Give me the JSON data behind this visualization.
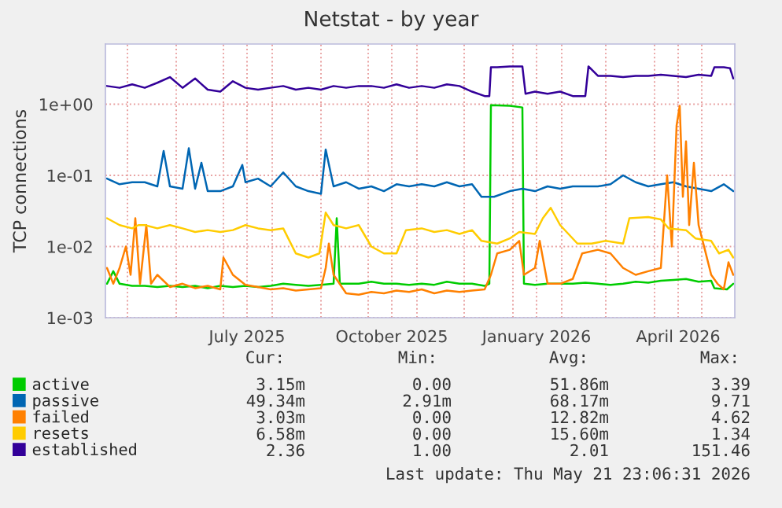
{
  "chart_data": {
    "type": "line",
    "title": "Netstat - by year",
    "ylabel": "TCP connections",
    "log": true,
    "grid": true,
    "legend": "bottom",
    "marker": "none",
    "line_style": "solid",
    "ylim": [
      0.001,
      7
    ],
    "yticks": [
      {
        "value": 0.001,
        "label": "1e-03"
      },
      {
        "value": 0.01,
        "label": "1e-02"
      },
      {
        "value": 0.1,
        "label": "1e-01"
      },
      {
        "value": 1,
        "label": "1e+00"
      }
    ],
    "xlim": [
      "2025-04-17",
      "2026-05-22"
    ],
    "xticks": [
      {
        "value": "2025-05-01",
        "label": null
      },
      {
        "value": "2025-06-01",
        "label": null
      },
      {
        "value": "2025-07-01",
        "label": null
      },
      {
        "value": "2025-07-16",
        "label": "July 2025"
      },
      {
        "value": "2025-08-01",
        "label": null
      },
      {
        "value": "2025-09-01",
        "label": null
      },
      {
        "value": "2025-10-01",
        "label": null
      },
      {
        "value": "2025-10-16",
        "label": "October 2025"
      },
      {
        "value": "2025-11-01",
        "label": null
      },
      {
        "value": "2025-12-01",
        "label": null
      },
      {
        "value": "2026-01-01",
        "label": null
      },
      {
        "value": "2026-01-16",
        "label": "January 2026"
      },
      {
        "value": "2026-02-01",
        "label": null
      },
      {
        "value": "2026-03-01",
        "label": null
      },
      {
        "value": "2026-04-01",
        "label": null
      },
      {
        "value": "2026-04-16",
        "label": "April 2026"
      },
      {
        "value": "2026-05-01",
        "label": null
      }
    ],
    "series": [
      {
        "name": "active",
        "color": "#00cc00",
        "x": [
          "2025-04-18",
          "2025-04-22",
          "2025-04-26",
          "2025-05-04",
          "2025-05-12",
          "2025-05-20",
          "2025-05-28",
          "2025-06-05",
          "2025-06-13",
          "2025-06-21",
          "2025-06-29",
          "2025-07-07",
          "2025-07-15",
          "2025-07-23",
          "2025-07-31",
          "2025-08-08",
          "2025-08-16",
          "2025-08-24",
          "2025-09-01",
          "2025-09-09",
          "2025-09-11",
          "2025-09-13",
          "2025-09-25",
          "2025-10-03",
          "2025-10-11",
          "2025-10-19",
          "2025-10-27",
          "2025-11-04",
          "2025-11-12",
          "2025-11-20",
          "2025-11-28",
          "2025-12-06",
          "2025-12-14",
          "2025-12-17",
          "2025-12-18",
          "2025-12-30",
          "2026-01-07",
          "2026-01-08",
          "2026-01-15",
          "2026-01-23",
          "2026-01-31",
          "2026-02-08",
          "2026-02-16",
          "2026-02-24",
          "2026-03-04",
          "2026-03-12",
          "2026-03-20",
          "2026-03-28",
          "2026-04-05",
          "2026-04-13",
          "2026-04-21",
          "2026-04-29",
          "2026-05-07",
          "2026-05-09",
          "2026-05-17",
          "2026-05-21"
        ],
        "values": [
          0.003,
          0.0045,
          0.003,
          0.0028,
          0.0028,
          0.0027,
          0.0028,
          0.0027,
          0.0028,
          0.0026,
          0.0028,
          0.0027,
          0.0028,
          0.0027,
          0.0028,
          0.003,
          0.0029,
          0.0028,
          0.0029,
          0.003,
          0.025,
          0.003,
          0.003,
          0.0032,
          0.003,
          0.003,
          0.0029,
          0.003,
          0.0029,
          0.0032,
          0.003,
          0.003,
          0.0028,
          0.003,
          0.97,
          0.95,
          0.9,
          0.003,
          0.0029,
          0.003,
          0.003,
          0.003,
          0.0031,
          0.003,
          0.0029,
          0.003,
          0.0032,
          0.0031,
          0.0033,
          0.0034,
          0.0035,
          0.0032,
          0.0033,
          0.0026,
          0.0025,
          0.003
        ]
      },
      {
        "name": "passive",
        "color": "#0066b3",
        "x": [
          "2025-04-18",
          "2025-04-26",
          "2025-05-04",
          "2025-05-12",
          "2025-05-20",
          "2025-05-24",
          "2025-05-28",
          "2025-06-05",
          "2025-06-09",
          "2025-06-13",
          "2025-06-17",
          "2025-06-21",
          "2025-06-29",
          "2025-07-07",
          "2025-07-13",
          "2025-07-15",
          "2025-07-23",
          "2025-07-31",
          "2025-08-08",
          "2025-08-16",
          "2025-08-24",
          "2025-09-01",
          "2025-09-04",
          "2025-09-09",
          "2025-09-17",
          "2025-09-25",
          "2025-10-03",
          "2025-10-11",
          "2025-10-19",
          "2025-10-27",
          "2025-11-04",
          "2025-11-12",
          "2025-11-20",
          "2025-11-28",
          "2025-12-06",
          "2025-12-12",
          "2025-12-20",
          "2025-12-30",
          "2026-01-07",
          "2026-01-15",
          "2026-01-23",
          "2026-01-31",
          "2026-02-08",
          "2026-02-16",
          "2026-02-24",
          "2026-03-04",
          "2026-03-12",
          "2026-03-20",
          "2026-03-28",
          "2026-04-05",
          "2026-04-13",
          "2026-04-21",
          "2026-04-29",
          "2026-05-07",
          "2026-05-15",
          "2026-05-21"
        ],
        "values": [
          0.09,
          0.075,
          0.08,
          0.08,
          0.07,
          0.22,
          0.07,
          0.065,
          0.24,
          0.065,
          0.15,
          0.06,
          0.06,
          0.07,
          0.14,
          0.08,
          0.09,
          0.07,
          0.11,
          0.07,
          0.06,
          0.055,
          0.23,
          0.07,
          0.08,
          0.065,
          0.07,
          0.06,
          0.075,
          0.07,
          0.075,
          0.07,
          0.08,
          0.07,
          0.075,
          0.05,
          0.05,
          0.06,
          0.065,
          0.06,
          0.07,
          0.065,
          0.07,
          0.07,
          0.07,
          0.075,
          0.1,
          0.08,
          0.07,
          0.075,
          0.08,
          0.07,
          0.065,
          0.06,
          0.075,
          0.06
        ]
      },
      {
        "name": "failed",
        "color": "#ff8000",
        "x": [
          "2025-04-18",
          "2025-04-22",
          "2025-04-26",
          "2025-04-30",
          "2025-05-03",
          "2025-05-06",
          "2025-05-09",
          "2025-05-13",
          "2025-05-16",
          "2025-05-20",
          "2025-05-28",
          "2025-06-05",
          "2025-06-13",
          "2025-06-21",
          "2025-06-29",
          "2025-07-01",
          "2025-07-07",
          "2025-07-15",
          "2025-07-23",
          "2025-07-31",
          "2025-08-08",
          "2025-08-16",
          "2025-08-24",
          "2025-09-01",
          "2025-09-04",
          "2025-09-06",
          "2025-09-09",
          "2025-09-17",
          "2025-09-25",
          "2025-10-03",
          "2025-10-11",
          "2025-10-19",
          "2025-10-27",
          "2025-11-04",
          "2025-11-12",
          "2025-11-20",
          "2025-11-28",
          "2025-12-06",
          "2025-12-14",
          "2025-12-18",
          "2025-12-22",
          "2025-12-30",
          "2026-01-05",
          "2026-01-08",
          "2026-01-15",
          "2026-01-18",
          "2026-01-23",
          "2026-01-31",
          "2026-02-08",
          "2026-02-14",
          "2026-02-24",
          "2026-03-04",
          "2026-03-12",
          "2026-03-20",
          "2026-03-28",
          "2026-04-05",
          "2026-04-09",
          "2026-04-12",
          "2026-04-15",
          "2026-04-17",
          "2026-04-19",
          "2026-04-21",
          "2026-04-23",
          "2026-04-26",
          "2026-04-29",
          "2026-05-03",
          "2026-05-07",
          "2026-05-11",
          "2026-05-15",
          "2026-05-18",
          "2026-05-21"
        ],
        "values": [
          0.005,
          0.003,
          0.005,
          0.01,
          0.004,
          0.025,
          0.003,
          0.02,
          0.003,
          0.004,
          0.0027,
          0.003,
          0.0026,
          0.0028,
          0.0025,
          0.007,
          0.004,
          0.0029,
          0.0027,
          0.0025,
          0.0026,
          0.0024,
          0.0025,
          0.0026,
          0.005,
          0.011,
          0.004,
          0.0022,
          0.0021,
          0.0023,
          0.0022,
          0.0024,
          0.0023,
          0.0025,
          0.0022,
          0.0024,
          0.0023,
          0.0024,
          0.0025,
          0.004,
          0.008,
          0.009,
          0.012,
          0.004,
          0.005,
          0.012,
          0.003,
          0.003,
          0.0035,
          0.008,
          0.009,
          0.008,
          0.005,
          0.004,
          0.0045,
          0.005,
          0.1,
          0.01,
          0.5,
          0.95,
          0.05,
          0.3,
          0.02,
          0.15,
          0.02,
          0.009,
          0.004,
          0.003,
          0.0025,
          0.006,
          0.004
        ]
      },
      {
        "name": "resets",
        "color": "#ffcc00",
        "x": [
          "2025-04-18",
          "2025-04-26",
          "2025-05-04",
          "2025-05-08",
          "2025-05-12",
          "2025-05-20",
          "2025-05-28",
          "2025-06-05",
          "2025-06-13",
          "2025-06-21",
          "2025-06-29",
          "2025-07-07",
          "2025-07-15",
          "2025-07-23",
          "2025-07-31",
          "2025-08-08",
          "2025-08-16",
          "2025-08-24",
          "2025-08-31",
          "2025-09-04",
          "2025-09-09",
          "2025-09-17",
          "2025-09-25",
          "2025-10-03",
          "2025-10-11",
          "2025-10-19",
          "2025-10-25",
          "2025-11-04",
          "2025-11-12",
          "2025-11-20",
          "2025-11-28",
          "2025-12-06",
          "2025-12-12",
          "2025-12-22",
          "2025-12-30",
          "2026-01-05",
          "2026-01-15",
          "2026-01-20",
          "2026-01-25",
          "2026-01-31",
          "2026-02-11",
          "2026-02-20",
          "2026-03-01",
          "2026-03-12",
          "2026-03-16",
          "2026-03-28",
          "2026-04-05",
          "2026-04-10",
          "2026-04-21",
          "2026-04-27",
          "2026-05-07",
          "2026-05-12",
          "2026-05-18",
          "2026-05-21"
        ],
        "values": [
          0.025,
          0.02,
          0.018,
          0.02,
          0.02,
          0.018,
          0.02,
          0.018,
          0.016,
          0.017,
          0.016,
          0.017,
          0.02,
          0.018,
          0.017,
          0.018,
          0.008,
          0.007,
          0.008,
          0.03,
          0.02,
          0.018,
          0.02,
          0.01,
          0.008,
          0.008,
          0.017,
          0.018,
          0.016,
          0.017,
          0.015,
          0.017,
          0.012,
          0.011,
          0.013,
          0.016,
          0.015,
          0.025,
          0.035,
          0.02,
          0.011,
          0.011,
          0.012,
          0.011,
          0.025,
          0.026,
          0.024,
          0.018,
          0.017,
          0.013,
          0.012,
          0.008,
          0.009,
          0.007
        ]
      },
      {
        "name": "established",
        "color": "#330099",
        "x": [
          "2025-04-18",
          "2025-04-26",
          "2025-05-04",
          "2025-05-12",
          "2025-05-20",
          "2025-05-28",
          "2025-06-05",
          "2025-06-13",
          "2025-06-21",
          "2025-06-29",
          "2025-07-07",
          "2025-07-15",
          "2025-07-23",
          "2025-07-31",
          "2025-08-08",
          "2025-08-16",
          "2025-08-24",
          "2025-09-01",
          "2025-09-09",
          "2025-09-17",
          "2025-09-25",
          "2025-10-03",
          "2025-10-11",
          "2025-10-19",
          "2025-10-27",
          "2025-11-04",
          "2025-11-12",
          "2025-11-20",
          "2025-11-28",
          "2025-12-06",
          "2025-12-14",
          "2025-12-17",
          "2025-12-18",
          "2025-12-22",
          "2025-12-30",
          "2026-01-07",
          "2026-01-09",
          "2026-01-15",
          "2026-01-23",
          "2026-01-31",
          "2026-02-08",
          "2026-02-16",
          "2026-02-18",
          "2026-02-24",
          "2026-03-04",
          "2026-03-12",
          "2026-03-20",
          "2026-03-28",
          "2026-04-05",
          "2026-04-13",
          "2026-04-21",
          "2026-04-29",
          "2026-05-07",
          "2026-05-09",
          "2026-05-15",
          "2026-05-19",
          "2026-05-21"
        ],
        "values": [
          1.8,
          1.7,
          1.9,
          1.7,
          2.0,
          2.4,
          1.7,
          2.3,
          1.6,
          1.5,
          2.1,
          1.7,
          1.6,
          1.7,
          1.8,
          1.6,
          1.7,
          1.6,
          1.8,
          1.7,
          1.8,
          1.8,
          1.7,
          1.9,
          1.7,
          1.8,
          1.7,
          1.9,
          1.8,
          1.5,
          1.3,
          1.3,
          3.3,
          3.3,
          3.4,
          3.4,
          1.4,
          1.5,
          1.4,
          1.5,
          1.3,
          1.3,
          3.4,
          2.5,
          2.5,
          2.4,
          2.5,
          2.5,
          2.6,
          2.5,
          2.4,
          2.6,
          2.5,
          3.3,
          3.3,
          3.2,
          2.3
        ]
      }
    ],
    "annotations": [
      "Cur:",
      "Min:",
      "Avg:",
      "Max:",
      "3.15m",
      "0.00",
      "51.86m",
      "3.39",
      "49.34m",
      "2.91m",
      "68.17m",
      "9.71",
      "3.03m",
      "0.00",
      "12.82m",
      "4.62",
      "6.58m",
      "0.00",
      "15.60m",
      "1.34",
      "2.36",
      "1.00",
      "2.01",
      "151.46",
      "Last update: Thu May 21 23:06:31 2026"
    ]
  }
}
